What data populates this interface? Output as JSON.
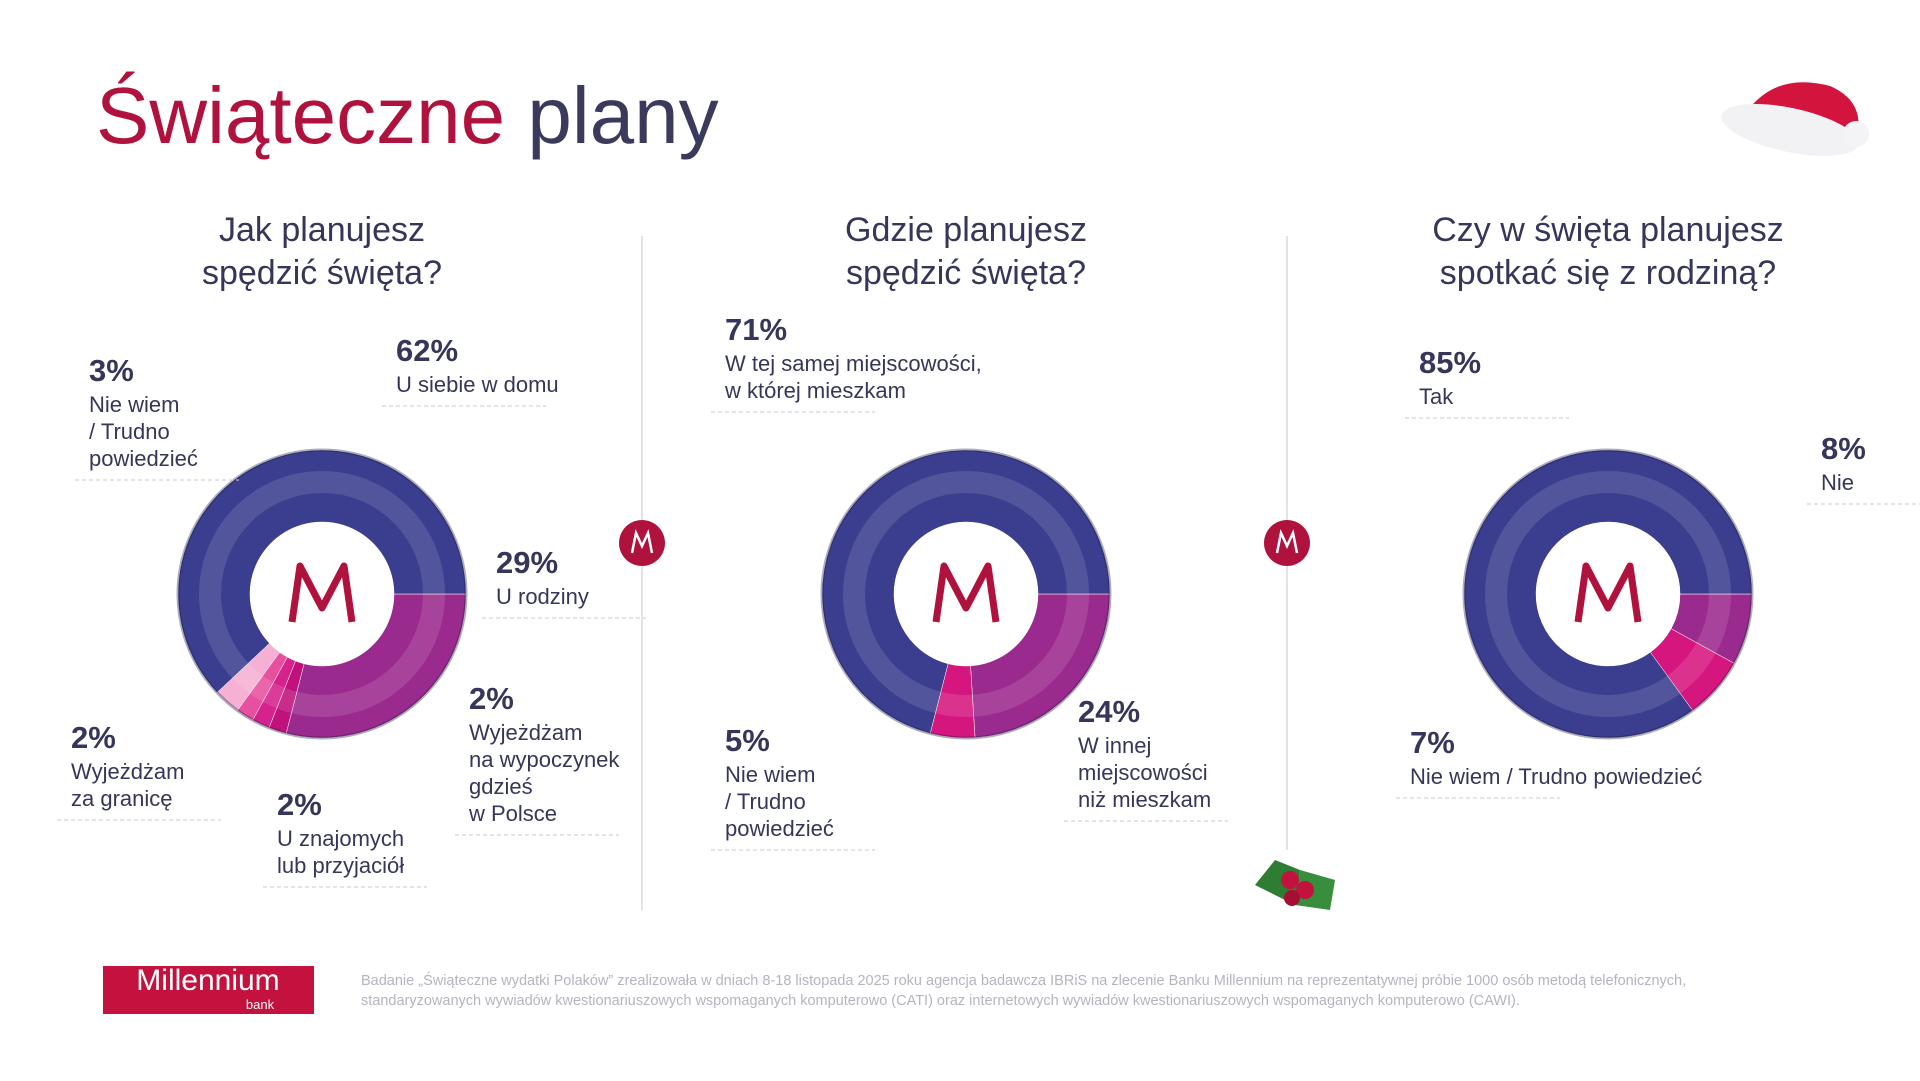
{
  "title": {
    "highlight": "Świąteczne",
    "rest": "plany"
  },
  "logo": {
    "name": "Millennium",
    "sub": "bank"
  },
  "footnote": [
    "Badanie „Świąteczne wydatki Polaków” zrealizowała w dniach 8-18 listopada 2025 roku agencja badawcza IBRiS na zlecenie Banku Millennium na reprezentatywnej próbie 1000 osób metodą telefonicznych,",
    "standaryzowanych wywiadów kwestionariuszowych wspomaganych komputerowo (CATI) oraz internetowych wywiadów kwestionariuszowych wspomaganych komputerowo (CAWI)."
  ],
  "chart_data": [
    {
      "type": "donut",
      "title": "Jak planujesz\nspędzić święta?",
      "categories": [
        "U rodziny",
        "Wyjeżdżam\nna wypoczynek\ngdzieś\nw Polsce",
        "U znajomych\nlub przyjaciół",
        "Wyjeżdżam\nza granicę",
        "Nie wiem\n/ Trudno\npowiedzieć",
        "U siebie w domu"
      ],
      "values": [
        29,
        2,
        2,
        2,
        3,
        62
      ],
      "value_labels": [
        "29%",
        "2%",
        "2%",
        "2%",
        "3%",
        "62%"
      ],
      "colors": [
        "#9b2a8e",
        "#c0117c",
        "#d6228c",
        "#e7509f",
        "#f5b0d3",
        "#3b3e8e"
      ]
    },
    {
      "type": "donut",
      "title": "Gdzie planujesz\nspędzić święta?",
      "categories": [
        "W innej\nmiejscowości\nniż mieszkam",
        "Nie wiem\n/ Trudno\npowiedzieć",
        "W tej samej miejscowości,\nw której mieszkam"
      ],
      "values": [
        24,
        5,
        71
      ],
      "value_labels": [
        "24%",
        "5%",
        "71%"
      ],
      "colors": [
        "#9b2a8e",
        "#d6167f",
        "#3b3e8e"
      ]
    },
    {
      "type": "donut",
      "title": "Czy w święta planujesz\nspotkać się z rodziną?",
      "categories": [
        "Nie",
        "Nie wiem / Trudno powiedzieć",
        "Tak"
      ],
      "values": [
        8,
        7,
        85
      ],
      "value_labels": [
        "8%",
        "7%",
        "85%"
      ],
      "colors": [
        "#9b2a8e",
        "#d6167f",
        "#3b3e8e"
      ]
    }
  ]
}
